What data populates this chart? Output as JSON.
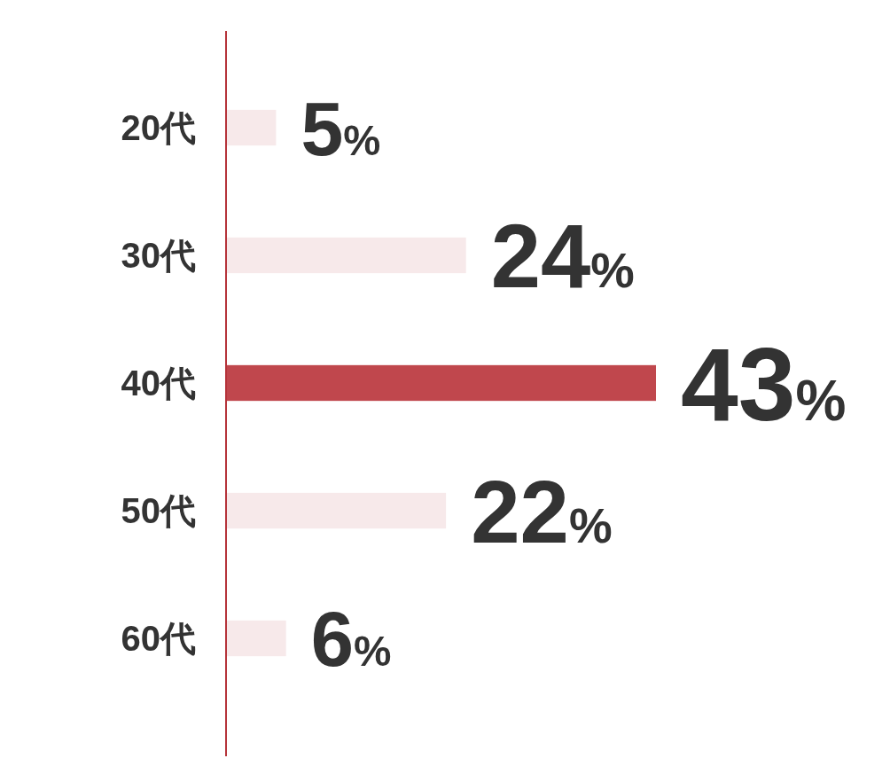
{
  "chart_data": {
    "type": "bar",
    "orientation": "horizontal",
    "categories": [
      "20代",
      "30代",
      "40代",
      "50代",
      "60代"
    ],
    "values": [
      5,
      24,
      43,
      22,
      6
    ],
    "colors": [
      "#f7e9ea",
      "#f7e9ea",
      "#c0474d",
      "#f7e9ea",
      "#f7e9ea"
    ],
    "value_labels": [
      "5%",
      "24%",
      "43%",
      "22%",
      "6%"
    ]
  }
}
